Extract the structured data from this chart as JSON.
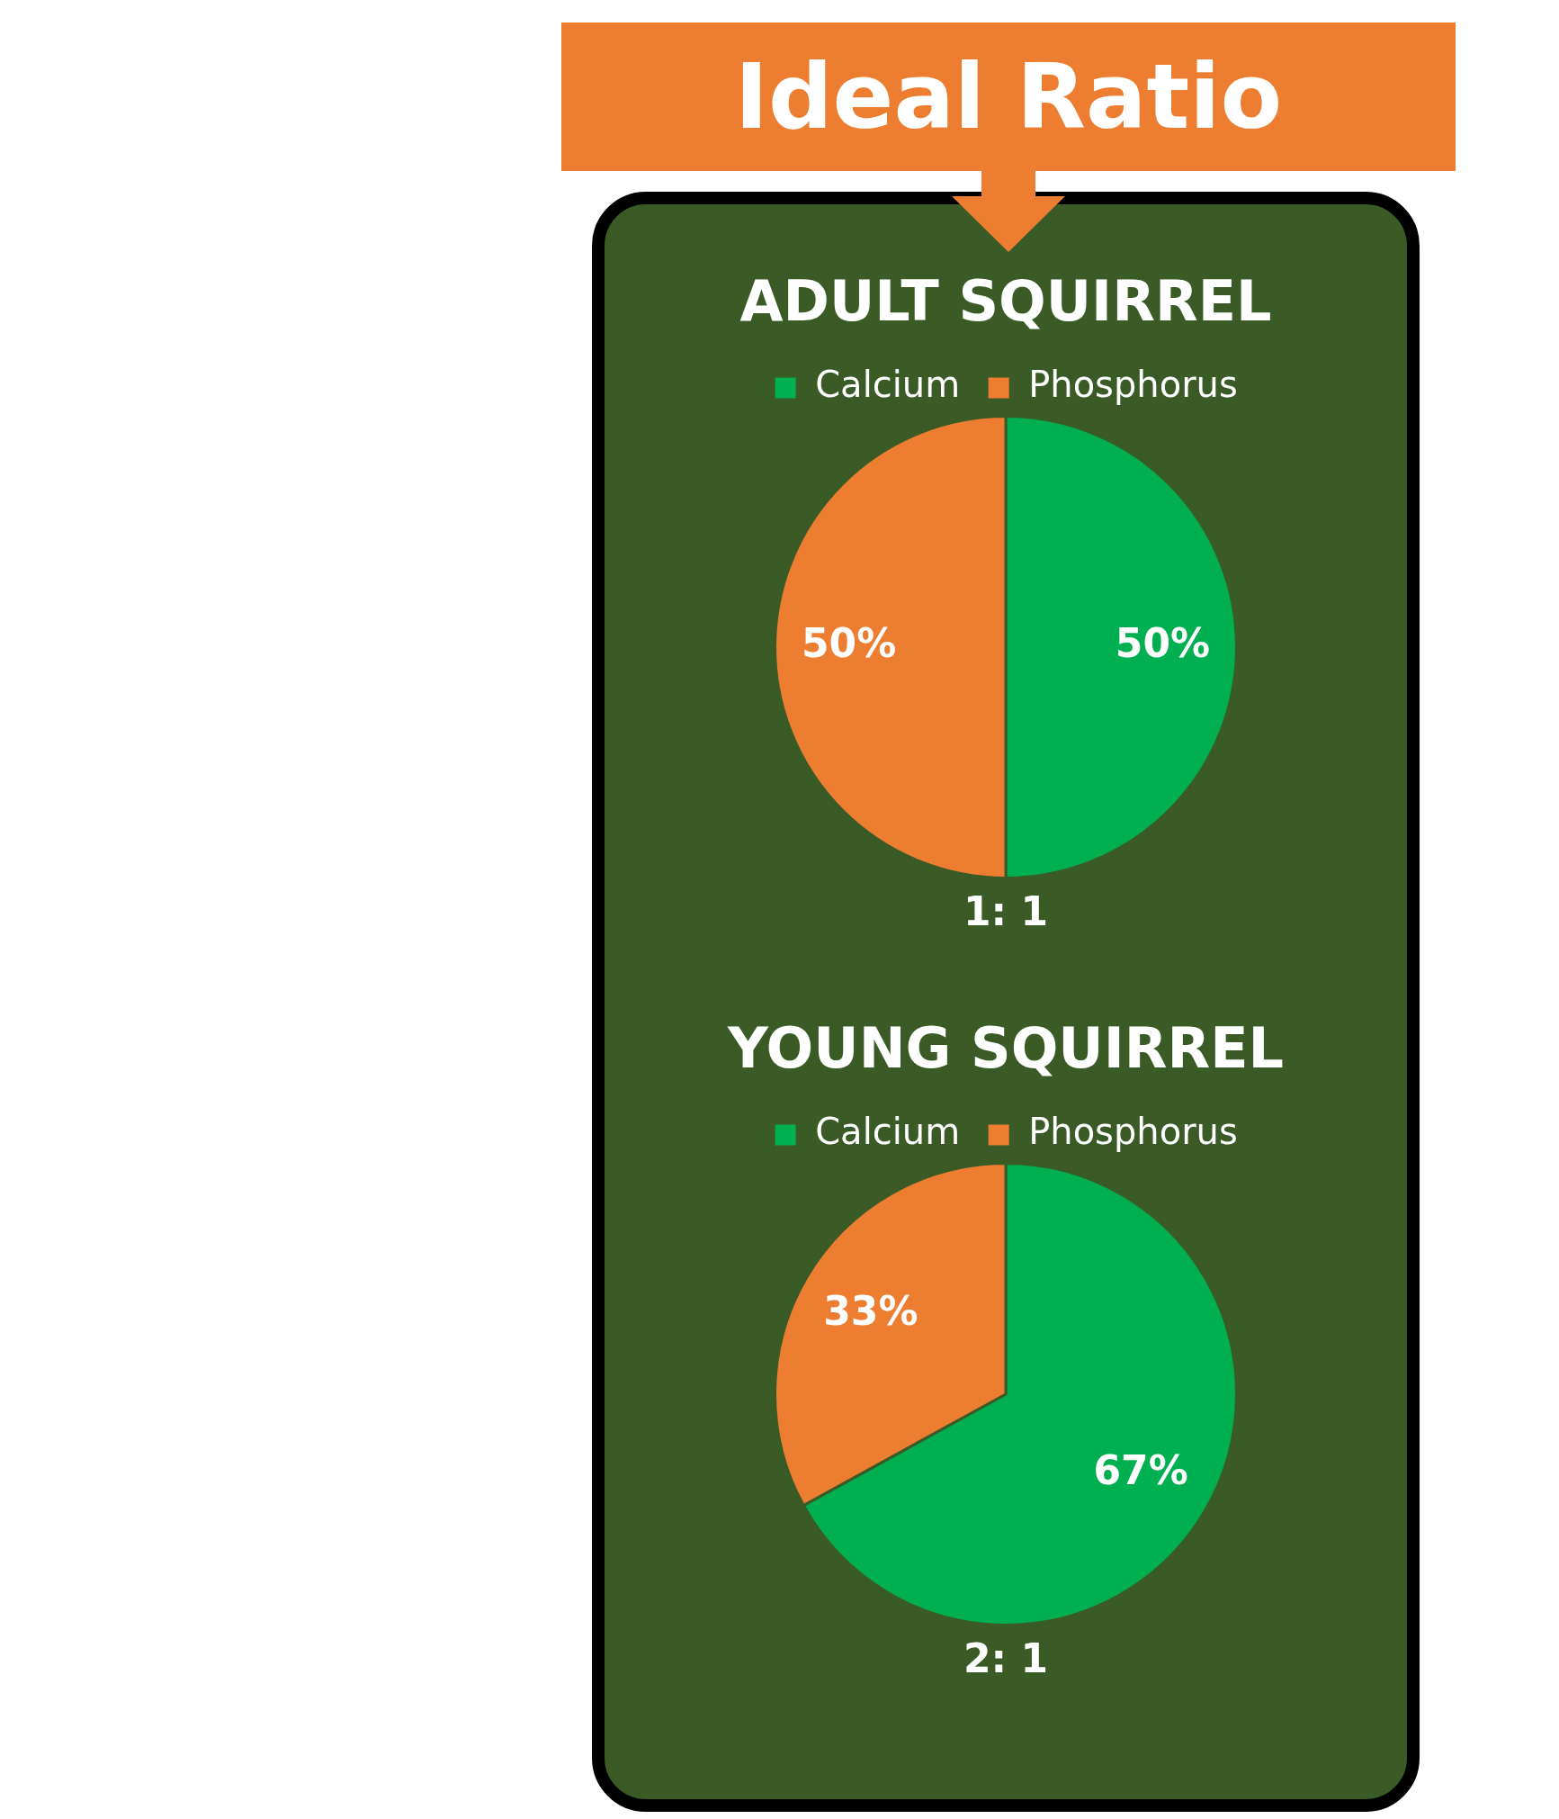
{
  "chart_data": [
    {
      "type": "other",
      "title": "Ideal Ratio"
    },
    {
      "type": "pie",
      "title": "ADULT SQUIRREL",
      "categories": [
        "Calcium",
        "Phosphorus"
      ],
      "values": [
        50,
        50
      ],
      "colors": [
        "#00b050",
        "#ed7d31"
      ],
      "value_labels": [
        "50%",
        "50%"
      ],
      "legend": "top",
      "annotations": [
        "1: 1"
      ]
    },
    {
      "type": "pie",
      "title": "YOUNG SQUIRREL",
      "categories": [
        "Calcium",
        "Phosphorus"
      ],
      "values": [
        67,
        33
      ],
      "colors": [
        "#00b050",
        "#ed7d31"
      ],
      "value_labels": [
        "67%",
        "33%"
      ],
      "legend": "top",
      "annotations": [
        "2: 1"
      ]
    }
  ]
}
